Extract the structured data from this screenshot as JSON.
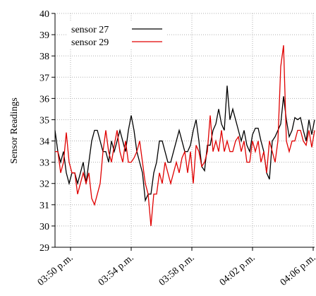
{
  "chart_data": {
    "type": "line",
    "y_label": "Sensor Readings",
    "x": [
      0,
      1,
      2,
      3,
      4,
      5,
      6,
      7,
      8,
      9,
      10,
      11,
      12,
      13,
      14,
      15,
      16,
      17,
      18,
      19,
      20,
      21,
      22,
      23,
      24,
      25,
      26,
      27,
      28,
      29,
      30,
      31,
      32,
      33,
      34,
      35,
      36,
      37,
      38,
      39,
      40,
      41,
      42,
      43,
      44,
      45,
      46,
      47,
      48,
      49,
      50,
      51,
      52,
      53,
      54,
      55,
      56,
      57,
      58,
      59,
      60,
      61,
      62,
      63,
      64,
      65,
      66,
      67,
      68,
      69,
      70,
      71,
      72,
      73,
      74,
      75,
      76,
      77,
      78,
      79,
      80,
      81,
      82,
      83,
      84,
      85,
      86,
      87,
      88,
      89,
      90,
      91,
      92
    ],
    "series": [
      {
        "name": "sensor 27",
        "color": "#000000",
        "values": [
          34.5,
          33.5,
          33,
          33.5,
          32.5,
          32,
          32.5,
          32.5,
          32,
          32.5,
          33,
          32,
          33,
          34,
          34.5,
          34.5,
          34,
          33.5,
          33.5,
          33,
          34,
          33.5,
          34,
          34.5,
          34,
          33.5,
          34.5,
          35.2,
          34.5,
          33.5,
          33,
          32.5,
          31.2,
          31.5,
          31.5,
          32.5,
          33,
          34,
          34,
          33.5,
          33,
          33,
          33.5,
          34,
          34.5,
          34,
          33.5,
          33.5,
          33.8,
          34.5,
          35,
          34,
          32.8,
          32.6,
          33.8,
          33.8,
          34.5,
          34.8,
          35.5,
          34.8,
          34.5,
          36.6,
          35,
          35.5,
          35,
          34.5,
          34,
          34.5,
          33.8,
          33.5,
          34.3,
          34.6,
          34.6,
          34,
          33.5,
          32.5,
          32.2,
          34,
          34.2,
          34.5,
          34.8,
          36.1,
          35,
          34.2,
          34.5,
          35.1,
          35,
          35.1,
          34.5,
          34,
          35,
          34.3,
          35
        ]
      },
      {
        "name": "sensor 29",
        "color": "#e00000",
        "values": [
          33.5,
          33.5,
          32.5,
          33,
          34.4,
          33,
          32.5,
          32.5,
          31.5,
          32,
          32.5,
          32,
          32.5,
          31.3,
          31,
          31.5,
          32,
          33.5,
          34.5,
          33.5,
          33,
          33.8,
          34.5,
          33.5,
          33,
          34,
          33,
          33,
          33.2,
          33.5,
          34,
          33,
          32,
          31.5,
          30,
          31.5,
          31.5,
          32.5,
          32,
          33,
          32.5,
          32,
          32.5,
          33,
          32.5,
          33.2,
          33.5,
          32.5,
          33.5,
          32,
          33.8,
          33.5,
          32.8,
          33,
          33.5,
          35.2,
          33.5,
          34,
          33.5,
          34.5,
          33.5,
          34,
          33.5,
          33.5,
          34,
          34.2,
          33.5,
          34,
          33,
          33,
          34,
          33.5,
          34,
          33,
          33.5,
          32.5,
          34,
          33.5,
          33,
          34,
          37.5,
          38.5,
          34,
          33.5,
          34,
          34,
          34.5,
          34.5,
          34,
          33.8,
          34.5,
          33.7,
          34.5
        ]
      }
    ],
    "xlim": [
      0,
      92
    ],
    "xticks": [
      {
        "value": 5.5,
        "label": "03:50 p.m."
      },
      {
        "value": 27,
        "label": "03:54 p.m."
      },
      {
        "value": 48.5,
        "label": "03:58 p.m."
      },
      {
        "value": 70,
        "label": "04:02 p.m."
      },
      {
        "value": 91.5,
        "label": "04:06 p.m."
      }
    ],
    "ylim": [
      29,
      40
    ],
    "yticks": [
      29,
      30,
      31,
      32,
      33,
      34,
      35,
      36,
      37,
      38,
      39,
      40
    ],
    "grid": true,
    "legend": "upper left"
  }
}
